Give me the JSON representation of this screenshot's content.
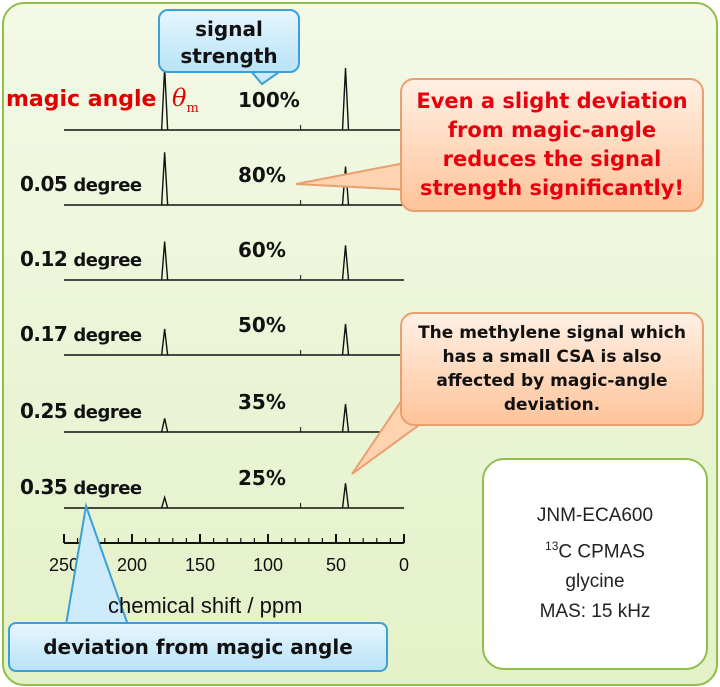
{
  "labels": {
    "magic_angle": "magic angle",
    "theta_symbol": "θ",
    "theta_subscript": "m",
    "signal_strength": [
      "signal",
      "strength"
    ],
    "axis_title": "chemical shift / ppm",
    "deviation_label": "deviation from magic angle"
  },
  "callouts": {
    "top": "Even a slight deviation from magic-angle reduces the signal strength significantly!",
    "middle": "The methylene signal which has a small CSA is also affected by magic-angle deviation."
  },
  "instrument_info": [
    "JNM-ECA600",
    "13C CPMAS",
    "glycine",
    "MAS: 15 kHz"
  ],
  "chart_data": {
    "type": "line",
    "xlabel": "chemical shift / ppm",
    "x_reversed": true,
    "xlim": [
      250,
      0
    ],
    "xticks": [
      250,
      200,
      150,
      100,
      50,
      0
    ],
    "peak_positions_ppm": [
      176,
      43
    ],
    "series": [
      {
        "deviation": "",
        "unit": "",
        "signal_strength": "100%",
        "carbonyl_height": 1.0,
        "methylene_height": 1.0
      },
      {
        "deviation": "0.05",
        "unit": "degree",
        "signal_strength": "80%",
        "carbonyl_height": 0.85,
        "methylene_height": 0.62
      },
      {
        "deviation": "0.12",
        "unit": "degree",
        "signal_strength": "60%",
        "carbonyl_height": 0.62,
        "methylene_height": 0.56
      },
      {
        "deviation": "0.17",
        "unit": "degree",
        "signal_strength": "50%",
        "carbonyl_height": 0.42,
        "methylene_height": 0.5
      },
      {
        "deviation": "0.25",
        "unit": "degree",
        "signal_strength": "35%",
        "carbonyl_height": 0.22,
        "methylene_height": 0.45
      },
      {
        "deviation": "0.35",
        "unit": "degree",
        "signal_strength": "25%",
        "carbonyl_height": 0.17,
        "methylene_height": 0.4
      }
    ]
  }
}
